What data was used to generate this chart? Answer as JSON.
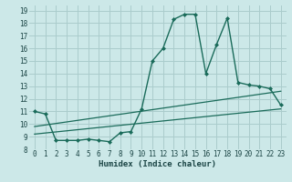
{
  "xlabel": "Humidex (Indice chaleur)",
  "bg_color": "#cce8e8",
  "grid_color": "#aacccc",
  "line_color": "#1a6b5a",
  "xlim": [
    -0.5,
    23.5
  ],
  "ylim": [
    8,
    19.4
  ],
  "xticks": [
    0,
    1,
    2,
    3,
    4,
    5,
    6,
    7,
    8,
    9,
    10,
    11,
    12,
    13,
    14,
    15,
    16,
    17,
    18,
    19,
    20,
    21,
    22,
    23
  ],
  "yticks": [
    8,
    9,
    10,
    11,
    12,
    13,
    14,
    15,
    16,
    17,
    18,
    19
  ],
  "line1_x": [
    0,
    1,
    2,
    3,
    4,
    5,
    6,
    7,
    8,
    9,
    10,
    11,
    12,
    13,
    14,
    15,
    16,
    17,
    18,
    19,
    20,
    21,
    22,
    23
  ],
  "line1_y": [
    11.0,
    10.8,
    8.7,
    8.7,
    8.7,
    8.8,
    8.7,
    8.6,
    9.3,
    9.4,
    11.2,
    15.0,
    16.0,
    18.3,
    18.7,
    18.7,
    14.0,
    16.3,
    18.4,
    13.3,
    13.1,
    13.0,
    12.8,
    11.5
  ],
  "line2_x": [
    0,
    23
  ],
  "line2_y": [
    9.2,
    11.2
  ],
  "line3_x": [
    0,
    23
  ],
  "line3_y": [
    9.8,
    12.6
  ],
  "tick_color": "#1a4444",
  "xlabel_color": "#1a4444"
}
